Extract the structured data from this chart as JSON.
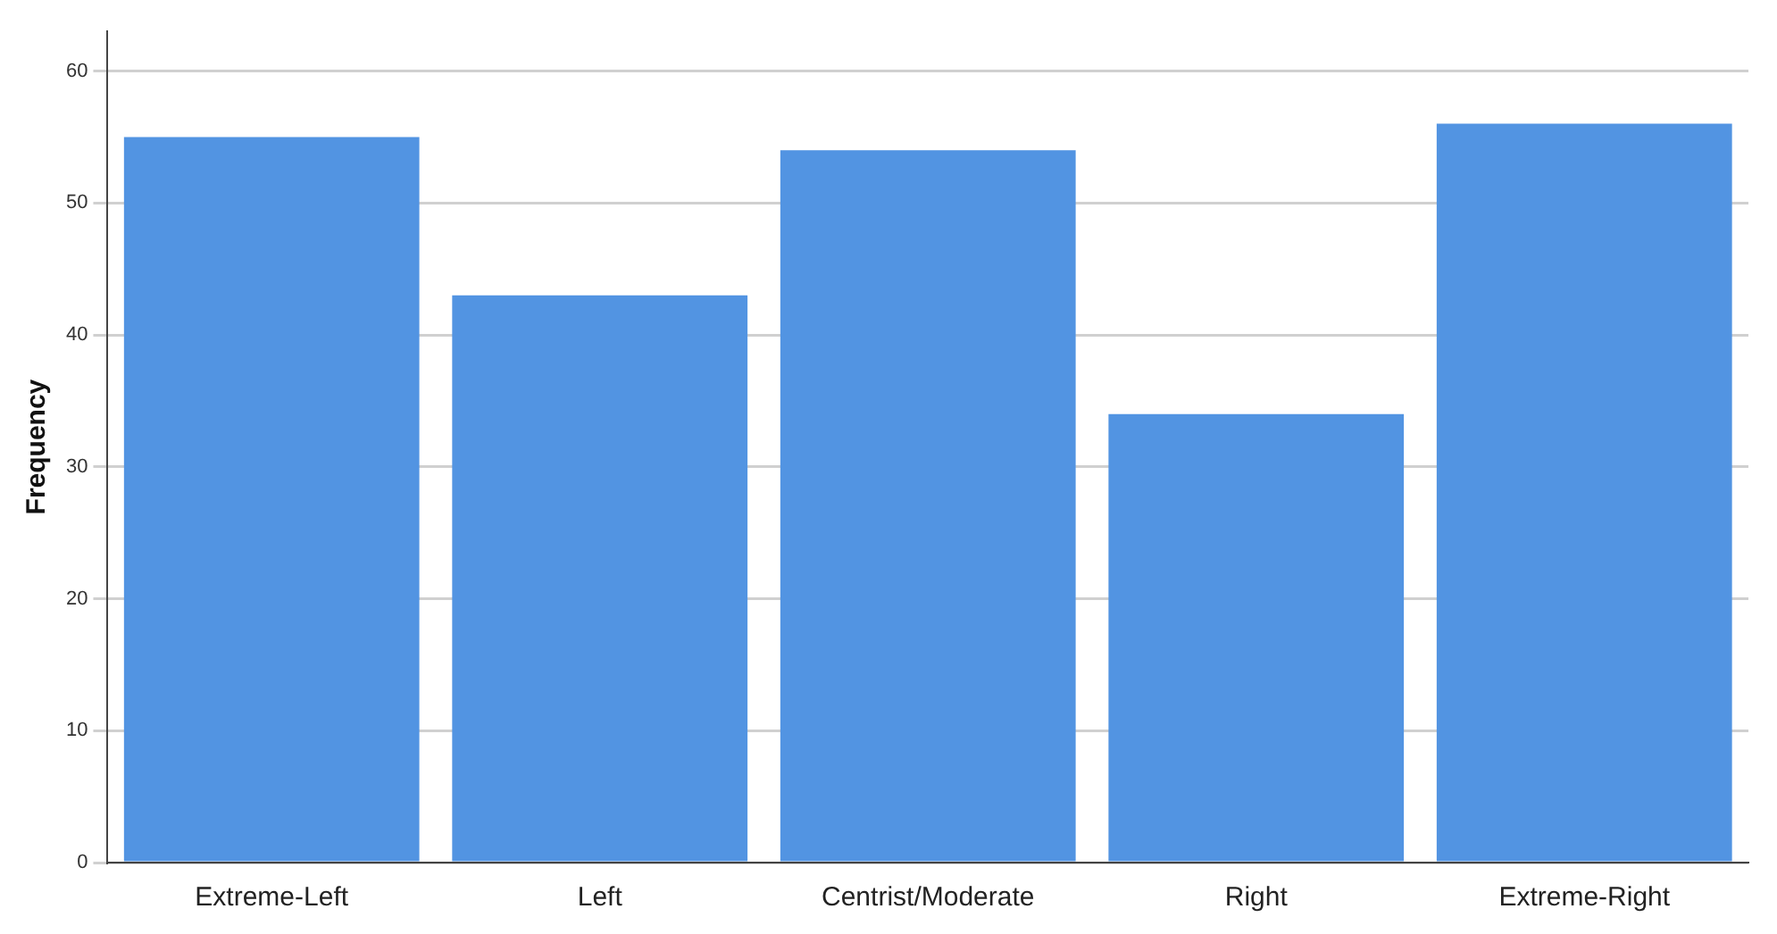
{
  "chart_data": {
    "type": "bar",
    "ylabel": "Frequency",
    "categories": [
      "Extreme-Left",
      "Left",
      "Centrist/Moderate",
      "Right",
      "Extreme-Right"
    ],
    "values": [
      55,
      43,
      54,
      34,
      56
    ],
    "color": "#5294e2",
    "ylim": [
      0,
      63
    ],
    "yticks": [
      0,
      10,
      20,
      30,
      40,
      50,
      60
    ],
    "grid": "y"
  }
}
